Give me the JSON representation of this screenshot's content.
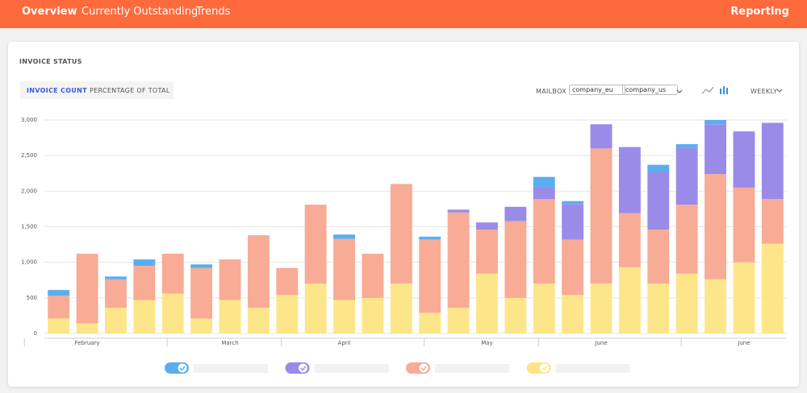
{
  "nav": {
    "items": [
      "Overview",
      "Currently Outstanding",
      "Trends"
    ],
    "right": "Reporting"
  },
  "card": {
    "title": "INVOICE STATUS",
    "tabs": [
      "INVOICE COUNT",
      "PERCENTAGE OF TOTAL"
    ],
    "mailbox_label": "MAILBOX",
    "mailboxes": [
      "company_eu",
      "company_us"
    ],
    "period": "WEEKLY"
  },
  "chart_data": {
    "type": "stacked-bar",
    "categories": [
      null,
      "February",
      null,
      null,
      null,
      null,
      "March",
      null,
      null,
      null,
      "April",
      null,
      null,
      null,
      null,
      "May",
      null,
      null,
      null,
      "June",
      null,
      null,
      null,
      null,
      "June",
      null
    ],
    "series": [
      {
        "color": "#fde68a",
        "values": [
          210,
          140,
          360,
          470,
          560,
          210,
          470,
          360,
          540,
          700,
          470,
          500,
          700,
          290,
          360,
          840,
          500,
          700,
          540,
          700,
          930,
          700,
          840,
          760,
          1000,
          1260
        ]
      },
      {
        "color": "#f8ab95",
        "values": [
          320,
          980,
          400,
          480,
          560,
          710,
          570,
          1020,
          380,
          1110,
          860,
          620,
          1400,
          1030,
          1340,
          620,
          1080,
          1190,
          780,
          1900,
          760,
          760,
          970,
          1480,
          1050,
          630
        ]
      },
      {
        "color": "#9b8be8",
        "values": [
          0,
          0,
          0,
          0,
          0,
          0,
          0,
          0,
          0,
          0,
          0,
          0,
          0,
          0,
          40,
          100,
          200,
          170,
          500,
          340,
          930,
          810,
          800,
          700,
          790,
          1070
        ]
      },
      {
        "color": "#5aaef0",
        "values": [
          80,
          0,
          40,
          90,
          0,
          50,
          0,
          0,
          0,
          0,
          60,
          0,
          0,
          40,
          0,
          0,
          0,
          140,
          40,
          0,
          0,
          100,
          50,
          60,
          0,
          0
        ]
      }
    ],
    "ylim": [
      0,
      3000
    ],
    "yticks": [
      0,
      500,
      {
        "value": 1000,
        "label": "1,000"
      },
      {
        "value": 1500,
        "label": "1,500"
      },
      {
        "value": 2000,
        "label": "2,000"
      },
      {
        "value": 2500,
        "label": "2,500"
      },
      {
        "value": 3000,
        "label": "3,000"
      }
    ],
    "grid": true
  }
}
